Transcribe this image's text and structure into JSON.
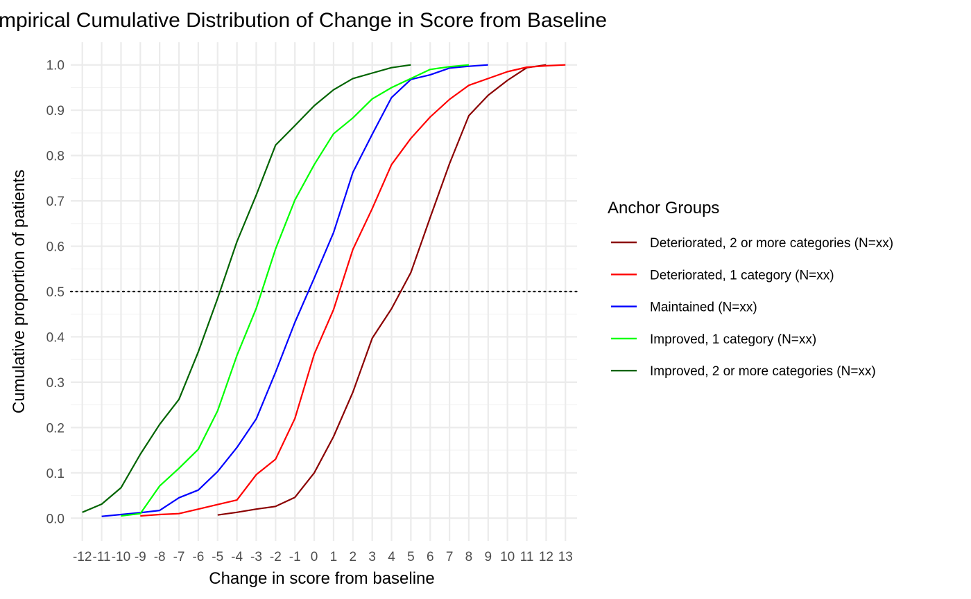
{
  "chart_data": {
    "type": "line",
    "title": "Empirical Cumulative Distribution of Change in Score from Baseline",
    "xlabel": "Change in score from baseline",
    "ylabel": "Cumulative proportion of patients",
    "xlim": [
      -12.6,
      13.6
    ],
    "ylim": [
      -0.05,
      1.05
    ],
    "x_ticks": [
      -12,
      -11,
      -10,
      -9,
      -8,
      -7,
      -6,
      -5,
      -4,
      -3,
      -2,
      -1,
      0,
      1,
      2,
      3,
      4,
      5,
      6,
      7,
      8,
      9,
      10,
      11,
      12,
      13
    ],
    "y_ticks": [
      "0.0",
      "0.1",
      "0.2",
      "0.3",
      "0.4",
      "0.5",
      "0.6",
      "0.7",
      "0.8",
      "0.9",
      "1.0"
    ],
    "grid": true,
    "reference_line": {
      "y": 0.5,
      "style": "dotted",
      "color": "#000000"
    },
    "legend": {
      "title": "Anchor Groups",
      "position": "right"
    },
    "series": [
      {
        "name": "Deteriorated, 2 or more categories (N=xx)",
        "color": "#8B0000",
        "x": [
          -5,
          -4,
          -3,
          -2,
          -1,
          0,
          1,
          2,
          3,
          4,
          5,
          6,
          7,
          8,
          9,
          10,
          11,
          12
        ],
        "values": [
          0.007,
          0.013,
          0.02,
          0.026,
          0.046,
          0.1,
          0.18,
          0.278,
          0.397,
          0.462,
          0.542,
          0.663,
          0.782,
          0.888,
          0.933,
          0.966,
          0.994,
          1.0
        ]
      },
      {
        "name": "Deteriorated, 1 category (N=xx)",
        "color": "#FF0000",
        "x": [
          -9,
          -8,
          -7,
          -6,
          -5,
          -4,
          -3,
          -2,
          -1,
          0,
          1,
          2,
          3,
          4,
          5,
          6,
          7,
          8,
          9,
          10,
          11,
          12,
          13
        ],
        "values": [
          0.005,
          0.008,
          0.01,
          0.02,
          0.03,
          0.04,
          0.096,
          0.13,
          0.22,
          0.362,
          0.46,
          0.593,
          0.683,
          0.78,
          0.838,
          0.885,
          0.924,
          0.955,
          0.97,
          0.985,
          0.995,
          0.998,
          1.0
        ]
      },
      {
        "name": "Maintained (N=xx)",
        "color": "#0000FF",
        "x": [
          -11,
          -10,
          -9,
          -8,
          -7,
          -6,
          -5,
          -4,
          -3,
          -2,
          -1,
          0,
          1,
          2,
          3,
          4,
          5,
          6,
          7,
          8,
          9
        ],
        "values": [
          0.004,
          0.008,
          0.012,
          0.017,
          0.045,
          0.062,
          0.103,
          0.156,
          0.219,
          0.322,
          0.432,
          0.53,
          0.63,
          0.763,
          0.847,
          0.928,
          0.968,
          0.978,
          0.993,
          0.997,
          1.0
        ]
      },
      {
        "name": "Improved, 1 category (N=xx)",
        "color": "#00FF00",
        "x": [
          -10,
          -9,
          -8,
          -7,
          -6,
          -5,
          -4,
          -3,
          -2,
          -1,
          0,
          1,
          2,
          3,
          4,
          5,
          6,
          7,
          8
        ],
        "values": [
          0.005,
          0.01,
          0.071,
          0.11,
          0.152,
          0.237,
          0.359,
          0.463,
          0.594,
          0.702,
          0.78,
          0.848,
          0.883,
          0.925,
          0.95,
          0.97,
          0.99,
          0.996,
          1.0
        ]
      },
      {
        "name": "Improved, 2 or more categories (N=xx)",
        "color": "#006400",
        "x": [
          -12,
          -11,
          -10,
          -9,
          -8,
          -7,
          -6,
          -5,
          -4,
          -3,
          -2,
          -1,
          0,
          1,
          2,
          3,
          4,
          5
        ],
        "values": [
          0.013,
          0.031,
          0.067,
          0.141,
          0.207,
          0.262,
          0.367,
          0.485,
          0.61,
          0.713,
          0.823,
          0.866,
          0.91,
          0.945,
          0.97,
          0.982,
          0.994,
          1.0
        ]
      }
    ]
  }
}
